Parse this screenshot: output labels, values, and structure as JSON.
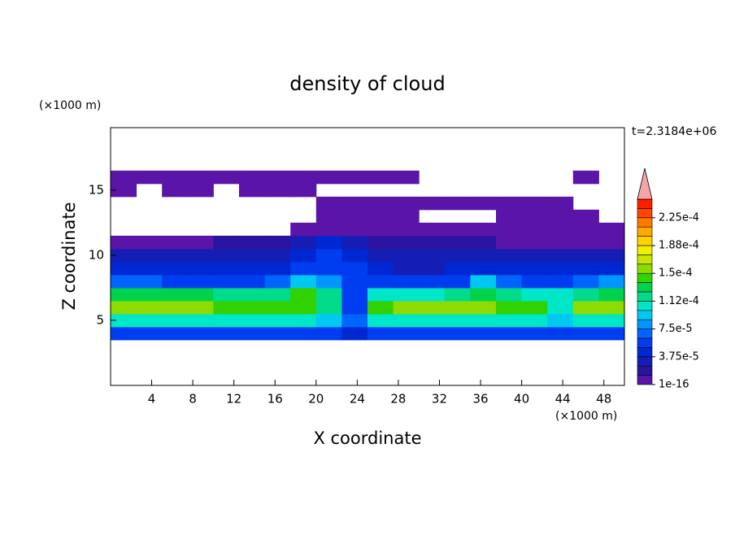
{
  "chart_data": {
    "type": "contour",
    "title": "density of cloud",
    "x_label": "X coordinate",
    "y_label": "Z coordinate",
    "x_unit": "(×1000 m)",
    "y_unit": "(×1000 m)",
    "time_label": "t=2.3184e+06",
    "xlim": [
      0,
      50
    ],
    "ylim": [
      0,
      19.8
    ],
    "xticks": [
      4,
      8,
      12,
      16,
      20,
      24,
      28,
      32,
      36,
      40,
      44,
      48
    ],
    "yticks": [
      5,
      10,
      15
    ],
    "x": [
      1.25,
      3.75,
      6.25,
      8.75,
      11.25,
      13.75,
      16.25,
      18.75,
      21.25,
      23.75,
      26.25,
      28.75,
      31.25,
      33.75,
      36.25,
      38.75,
      41.25,
      43.75,
      46.25,
      48.75
    ],
    "z": [
      4,
      5,
      6,
      7,
      8,
      9,
      10,
      11,
      12,
      13,
      14,
      15,
      16
    ],
    "values": [
      [
        5e-05,
        5e-05,
        5e-05,
        5e-05,
        5e-05,
        5e-05,
        5e-05,
        5e-05,
        5e-05,
        4e-05,
        5e-05,
        5e-05,
        5e-05,
        5e-05,
        5e-05,
        5e-05,
        5e-05,
        5e-05,
        5e-05,
        5e-05
      ],
      [
        0.0001,
        0.0001,
        0.0001,
        0.0001,
        0.0001,
        0.0001,
        0.0001,
        0.0001,
        9e-05,
        7e-05,
        0.0001,
        0.0001,
        0.0001,
        0.0001,
        0.0001,
        0.0001,
        0.0001,
        9e-05,
        0.0001,
        0.0001
      ],
      [
        0.00015,
        0.000155,
        0.00015,
        0.00015,
        0.000145,
        0.00014,
        0.00014,
        0.000145,
        0.00012,
        6e-05,
        0.00014,
        0.00015,
        0.00015,
        0.00015,
        0.00015,
        0.000145,
        0.00014,
        0.00011,
        0.00015,
        0.000155
      ],
      [
        0.00013,
        0.000135,
        0.00013,
        0.000125,
        0.00012,
        0.000115,
        0.00012,
        0.00014,
        0.00012,
        5e-05,
        0.0001,
        0.00011,
        0.00011,
        0.00012,
        0.000135,
        0.00012,
        0.00011,
        0.0001,
        0.00012,
        0.00013
      ],
      [
        7e-05,
        7e-05,
        6e-05,
        6e-05,
        6e-05,
        6e-05,
        7e-05,
        9e-05,
        8e-05,
        6e-05,
        5e-05,
        5e-05,
        5e-05,
        6e-05,
        9e-05,
        7e-05,
        6e-05,
        6e-05,
        7e-05,
        8e-05
      ],
      [
        4e-05,
        4e-05,
        4e-05,
        4e-05,
        4e-05,
        4e-05,
        4e-05,
        5e-05,
        6e-05,
        5.5e-05,
        4e-05,
        3.5e-05,
        3.5e-05,
        4e-05,
        4.5e-05,
        4e-05,
        4e-05,
        4e-05,
        4e-05,
        4.5e-05
      ],
      [
        2.5e-05,
        2.5e-05,
        2.5e-05,
        2.5e-05,
        3e-05,
        3e-05,
        3e-05,
        4e-05,
        5e-05,
        4.5e-05,
        3e-05,
        2.5e-05,
        2.5e-05,
        2.5e-05,
        3e-05,
        2.5e-05,
        2.5e-05,
        2.5e-05,
        2.5e-05,
        3e-05
      ],
      [
        1e-05,
        1e-05,
        1e-05,
        1e-05,
        1.5e-05,
        1.5e-05,
        1.5e-05,
        2.5e-05,
        4e-05,
        3e-05,
        1.5e-05,
        1.5e-05,
        1.5e-05,
        1.5e-05,
        1.5e-05,
        1e-05,
        1e-05,
        1e-05,
        1e-05,
        1e-05
      ],
      [
        null,
        null,
        null,
        null,
        null,
        null,
        null,
        5e-06,
        1e-05,
        1e-05,
        1e-05,
        5e-06,
        5e-06,
        5e-06,
        5e-06,
        5e-06,
        5e-06,
        5e-06,
        5e-06,
        5e-06
      ],
      [
        null,
        null,
        null,
        null,
        null,
        null,
        null,
        null,
        5e-06,
        5e-06,
        5e-06,
        5e-06,
        null,
        null,
        null,
        5e-06,
        5e-06,
        5e-06,
        5e-06,
        null
      ],
      [
        null,
        null,
        null,
        null,
        null,
        null,
        null,
        null,
        1e-06,
        1e-06,
        1e-06,
        1e-06,
        1e-06,
        1e-06,
        1e-06,
        1e-06,
        1e-06,
        1e-06,
        null,
        null
      ],
      [
        1e-06,
        null,
        1e-06,
        1e-06,
        null,
        1e-06,
        1e-06,
        1e-06,
        null,
        null,
        null,
        null,
        null,
        null,
        null,
        null,
        null,
        null,
        null,
        null
      ],
      [
        1e-06,
        1e-06,
        1e-06,
        1e-06,
        1e-06,
        1e-06,
        1e-06,
        1e-06,
        1e-06,
        1e-06,
        1e-06,
        1e-06,
        null,
        null,
        null,
        null,
        null,
        null,
        1e-06,
        null
      ]
    ],
    "colorbar": {
      "levels": [
        1e-16,
        1.25e-05,
        2.5e-05,
        3.75e-05,
        5e-05,
        6.25e-05,
        7.5e-05,
        8.75e-05,
        0.0001,
        0.0001125,
        0.000125,
        0.0001375,
        0.00015,
        0.0001625,
        0.000175,
        0.0001875,
        0.0002,
        0.0002125,
        0.000225,
        0.0002375,
        0.00025
      ],
      "colors": [
        "#5a14a8",
        "#2814a0",
        "#141eb4",
        "#0028d2",
        "#003cf0",
        "#0064ff",
        "#0096ff",
        "#00c8f0",
        "#00e6c8",
        "#00dc8c",
        "#00d24b",
        "#32d200",
        "#8cdc00",
        "#c8e600",
        "#f0f000",
        "#ffd200",
        "#ffaa00",
        "#ff7800",
        "#ff4600",
        "#ff1e00"
      ],
      "extend_color": "#f5a5a5",
      "ticks": [
        {
          "value": 1e-16,
          "label": "1e-16"
        },
        {
          "value": 3.75e-05,
          "label": "3.75e-5"
        },
        {
          "value": 7.5e-05,
          "label": "7.5e-5"
        },
        {
          "value": 0.0001125,
          "label": "1.12e-4"
        },
        {
          "value": 0.00015,
          "label": "1.5e-4"
        },
        {
          "value": 0.0001875,
          "label": "1.88e-4"
        },
        {
          "value": 0.000225,
          "label": "2.25e-4"
        }
      ]
    }
  }
}
